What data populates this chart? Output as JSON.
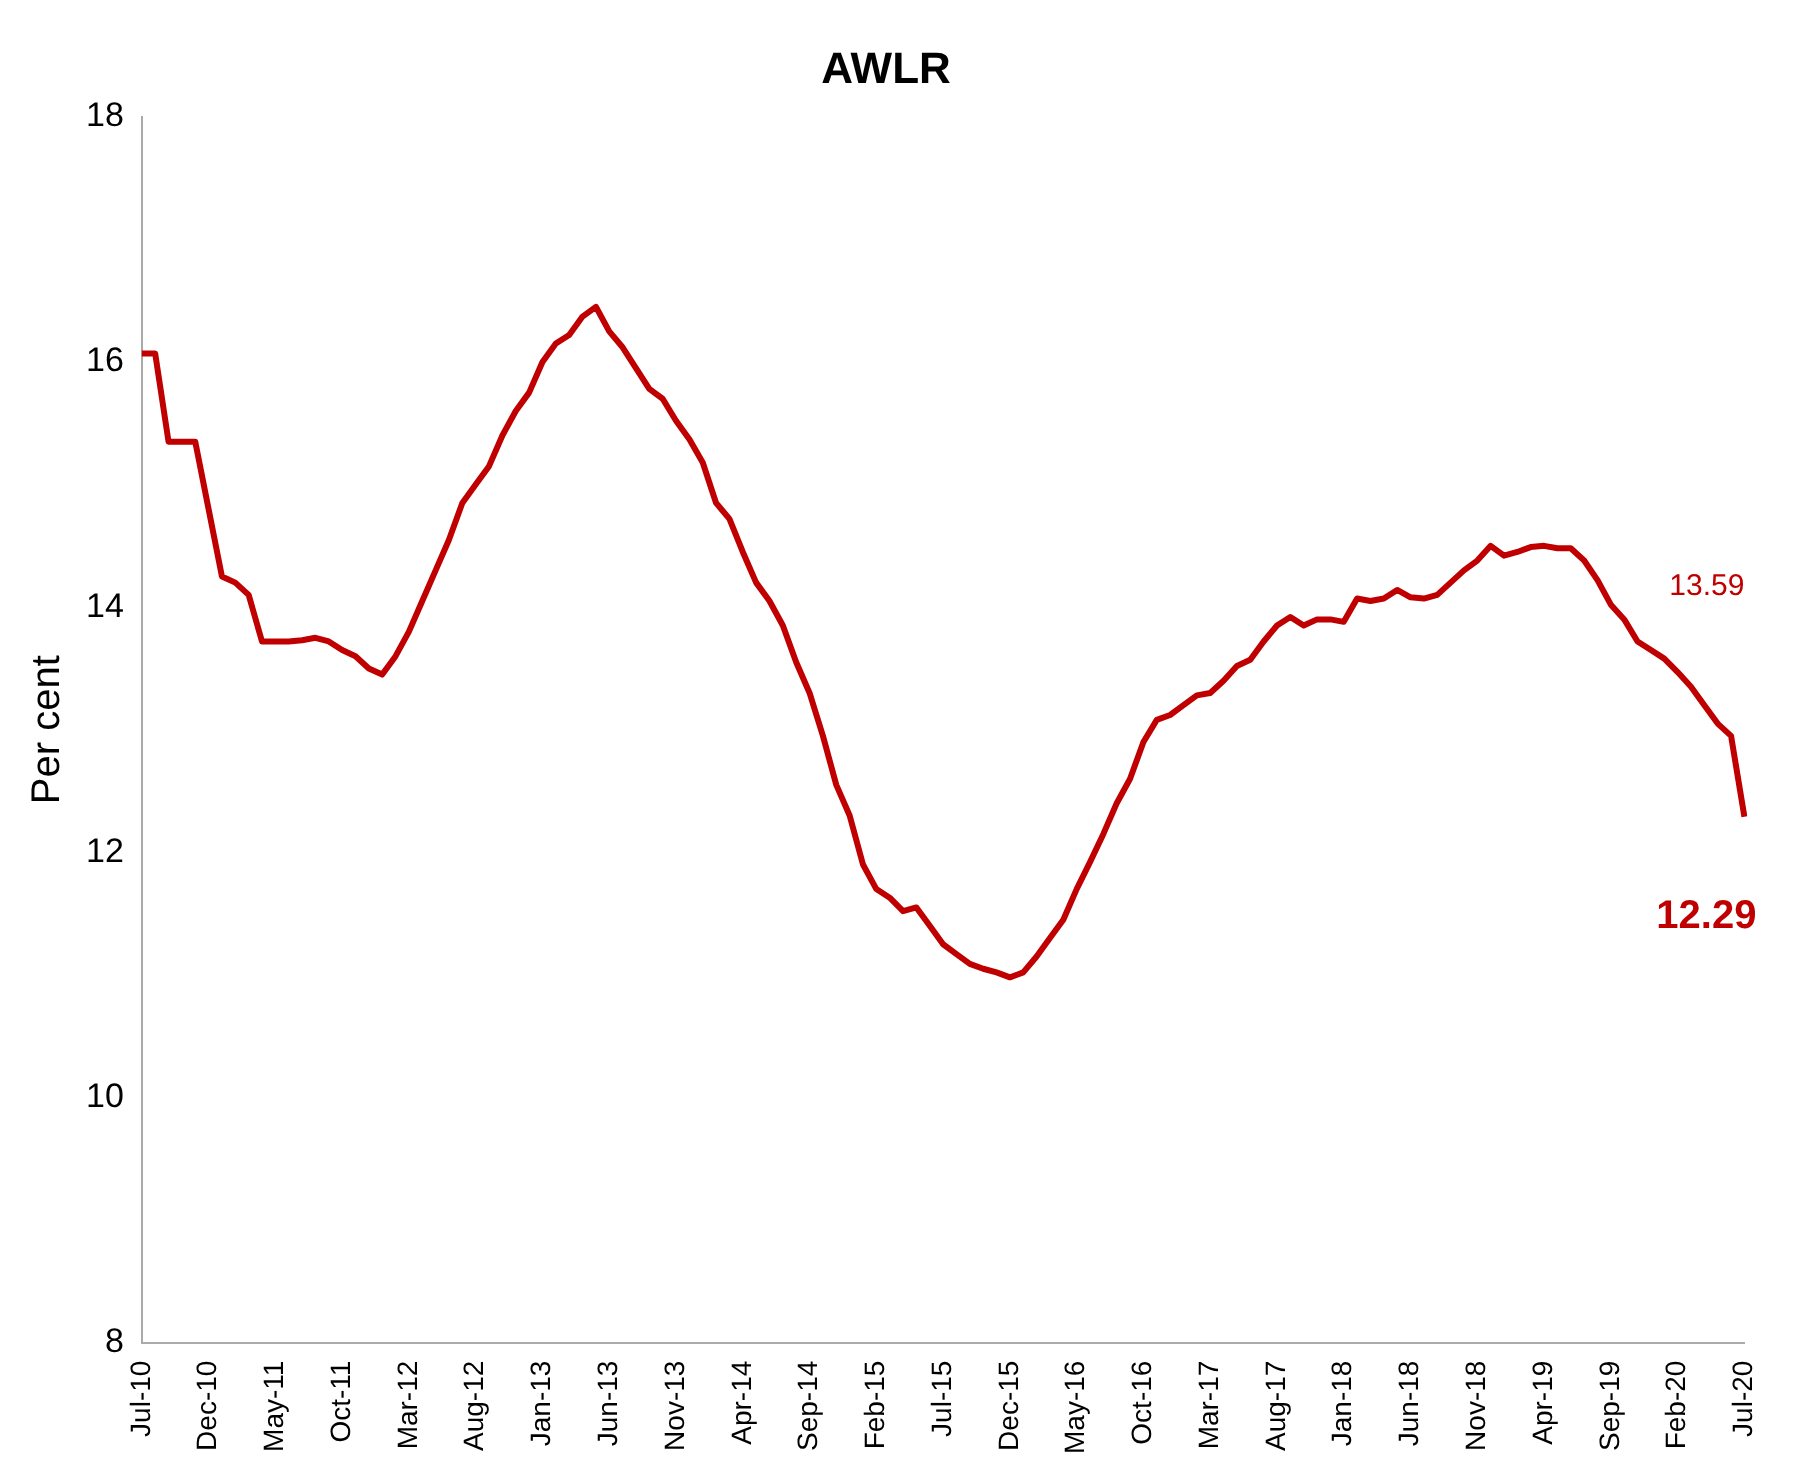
{
  "chart_data": {
    "type": "line",
    "title": "AWLR",
    "ylabel": "Per cent",
    "categories": [
      "Jul-10",
      null,
      null,
      null,
      null,
      "Dec-10",
      null,
      null,
      null,
      null,
      "May-11",
      null,
      null,
      null,
      null,
      "Oct-11",
      null,
      null,
      null,
      null,
      "Mar-12",
      null,
      null,
      null,
      null,
      "Aug-12",
      null,
      null,
      null,
      null,
      "Jan-13",
      null,
      null,
      null,
      null,
      "Jun-13",
      null,
      null,
      null,
      null,
      "Nov-13",
      null,
      null,
      null,
      null,
      "Apr-14",
      null,
      null,
      null,
      null,
      "Sep-14",
      null,
      null,
      null,
      null,
      "Feb-15",
      null,
      null,
      null,
      null,
      "Jul-15",
      null,
      null,
      null,
      null,
      "Dec-15",
      null,
      null,
      null,
      null,
      "May-16",
      null,
      null,
      null,
      null,
      "Oct-16",
      null,
      null,
      null,
      null,
      "Mar-17",
      null,
      null,
      null,
      null,
      "Aug-17",
      null,
      null,
      null,
      null,
      "Jan-18",
      null,
      null,
      null,
      null,
      "Jun-18",
      null,
      null,
      null,
      null,
      "Nov-18",
      null,
      null,
      null,
      null,
      "Apr-19",
      null,
      null,
      null,
      null,
      "Sep-19",
      null,
      null,
      null,
      null,
      "Feb-20",
      null,
      null,
      null,
      null,
      "Jul-20"
    ],
    "series": [
      {
        "color": "#c00000",
        "values": [
          16.07,
          16.07,
          15.35,
          15.35,
          15.35,
          14.8,
          14.25,
          14.2,
          14.1,
          13.72,
          13.72,
          13.72,
          13.73,
          13.75,
          13.72,
          13.65,
          13.6,
          13.5,
          13.45,
          13.6,
          13.8,
          14.05,
          14.3,
          14.55,
          14.85,
          15.0,
          15.15,
          15.4,
          15.6,
          15.75,
          16.0,
          16.15,
          16.22,
          16.37,
          16.45,
          16.25,
          16.12,
          15.95,
          15.78,
          15.7,
          15.52,
          15.37,
          15.18,
          14.85,
          14.72,
          14.45,
          14.2,
          14.05,
          13.85,
          13.55,
          13.3,
          12.95,
          12.55,
          12.3,
          11.9,
          11.7,
          11.63,
          11.52,
          11.55,
          11.4,
          11.25,
          11.17,
          11.09,
          11.05,
          11.02,
          10.98,
          11.02,
          11.15,
          11.3,
          11.45,
          11.7,
          11.92,
          12.15,
          12.4,
          12.6,
          12.9,
          13.08,
          13.12,
          13.2,
          13.28,
          13.3,
          13.4,
          13.52,
          13.57,
          13.72,
          13.85,
          13.92,
          13.85,
          13.9,
          13.9,
          13.88,
          14.07,
          14.05,
          14.07,
          14.14,
          14.08,
          14.07,
          14.1,
          14.2,
          14.3,
          14.38,
          14.5,
          14.42,
          14.45,
          14.49,
          14.5,
          14.48,
          14.48,
          14.38,
          14.22,
          14.02,
          13.9,
          13.72,
          13.65,
          13.58,
          13.47,
          13.35,
          13.2,
          13.05,
          12.95,
          12.29
        ]
      }
    ],
    "ylim": [
      8,
      18
    ],
    "yticks": [
      8,
      10,
      12,
      14,
      16,
      18
    ],
    "grid": false,
    "legend": false,
    "marker": "none",
    "line_style": "solid",
    "annotations": [
      "13.59",
      {
        "text": "12.29",
        "x": "Jul-20",
        "y": 12.29
      }
    ]
  }
}
